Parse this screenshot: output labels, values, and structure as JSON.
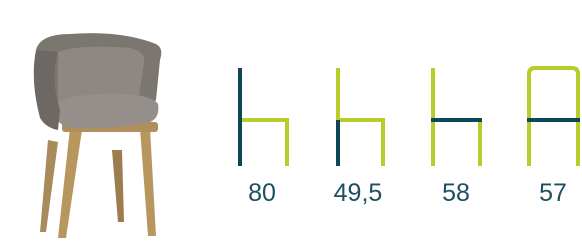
{
  "dimensions": [
    "80",
    "49,5",
    "58",
    "57"
  ]
}
